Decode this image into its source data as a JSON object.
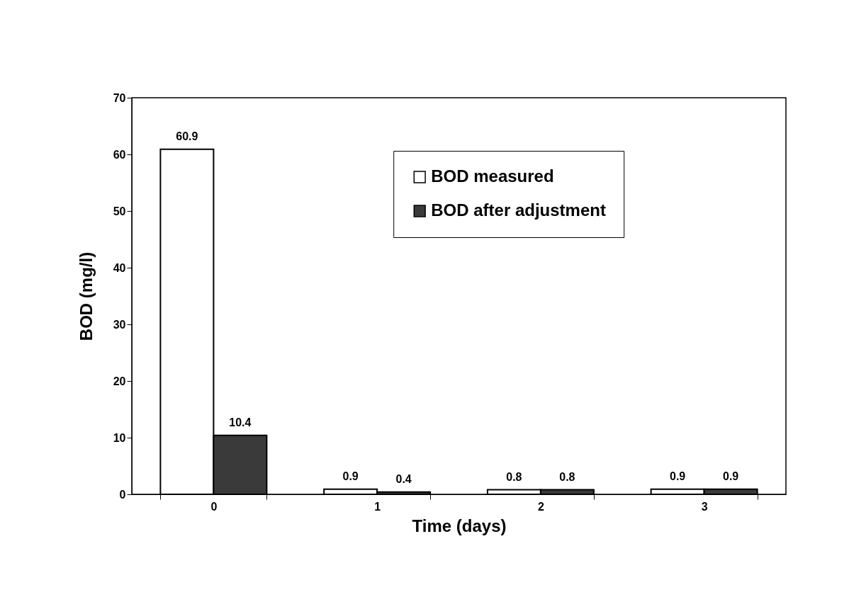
{
  "chart_data": {
    "type": "bar",
    "xlabel": "Time (days)",
    "ylabel": "BOD (mg/l)",
    "categories": [
      "0",
      "1",
      "2",
      "3"
    ],
    "series": [
      {
        "name": "BOD measured",
        "color": "#ffffff",
        "values": [
          60.9,
          0.9,
          0.8,
          0.9
        ]
      },
      {
        "name": "BOD after adjustment",
        "color": "#3a3a3a",
        "values": [
          10.4,
          0.4,
          0.8,
          0.9
        ]
      }
    ],
    "ylim": [
      0,
      70
    ],
    "yticks": [
      0,
      10,
      20,
      30,
      40,
      50,
      60,
      70
    ],
    "grid": false,
    "legend": "top right",
    "data_labels": true
  }
}
